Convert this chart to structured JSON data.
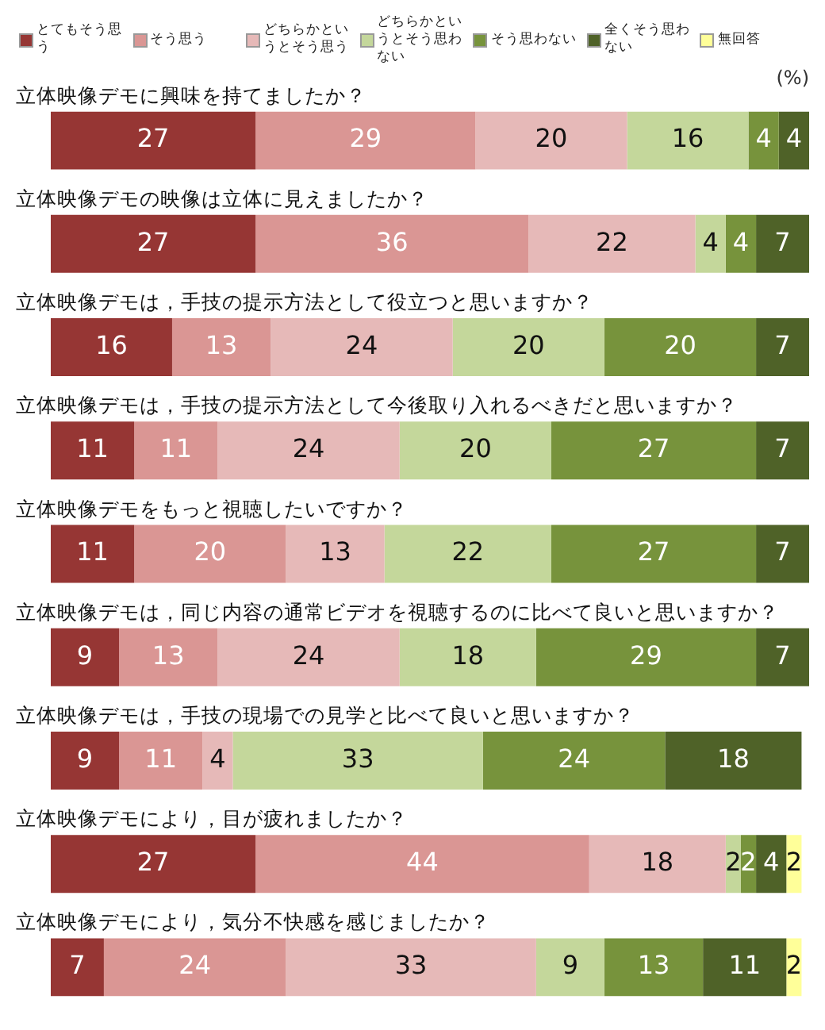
{
  "chart_data": {
    "type": "bar",
    "orientation": "horizontal",
    "stacked": true,
    "legend": "top",
    "tick_labels": false,
    "annotations": [
      "(%)"
    ],
    "categories": [
      "立体映像デモに興味を持てましたか？",
      "立体映像デモの映像は立体に見えましたか？",
      "立体映像デモは，手技の提示方法として役立つと思いますか？",
      "立体映像デモは，手技の提示方法として今後取り入れるべきだと思いますか？",
      "立体映像デモをもっと視聴したいですか？",
      "立体映像デモは，同じ内容の通常ビデオを視聴するのに比べて良いと思いますか？",
      "立体映像デモは，手技の現場での見学と比べて良いと思いますか？",
      "立体映像デモにより，目が疲れましたか？",
      "立体映像デモにより，気分不快感を感じましたか？"
    ],
    "series": [
      {
        "name": "とてもそう思う",
        "color": "#963634",
        "values": [
          27,
          27,
          16,
          11,
          11,
          9,
          9,
          27,
          7
        ]
      },
      {
        "name": "そう思う",
        "color": "#da9694",
        "values": [
          29,
          36,
          13,
          11,
          20,
          13,
          11,
          44,
          24
        ]
      },
      {
        "name": "どちらかというとそう思う",
        "color": "#e6b9b8",
        "values": [
          20,
          22,
          24,
          24,
          13,
          24,
          4,
          18,
          33
        ]
      },
      {
        "name": "どちらかというとそう思わない",
        "color": "#c4d79b",
        "values": [
          16,
          4,
          20,
          20,
          22,
          18,
          33,
          2,
          9
        ]
      },
      {
        "name": "そう思わない",
        "color": "#77933c",
        "values": [
          4,
          4,
          20,
          27,
          27,
          29,
          24,
          2,
          13
        ]
      },
      {
        "name": "全くそう思わない",
        "color": "#4f6228",
        "values": [
          4,
          7,
          7,
          7,
          7,
          7,
          18,
          4,
          11
        ]
      },
      {
        "name": "無回答",
        "color": "#ffff99",
        "values": [
          0,
          0,
          0,
          0,
          0,
          0,
          0,
          2,
          2
        ],
        "value_labels": [
          null,
          null,
          null,
          null,
          null,
          null,
          null,
          "2",
          "2"
        ]
      }
    ],
    "data_labels": true
  }
}
